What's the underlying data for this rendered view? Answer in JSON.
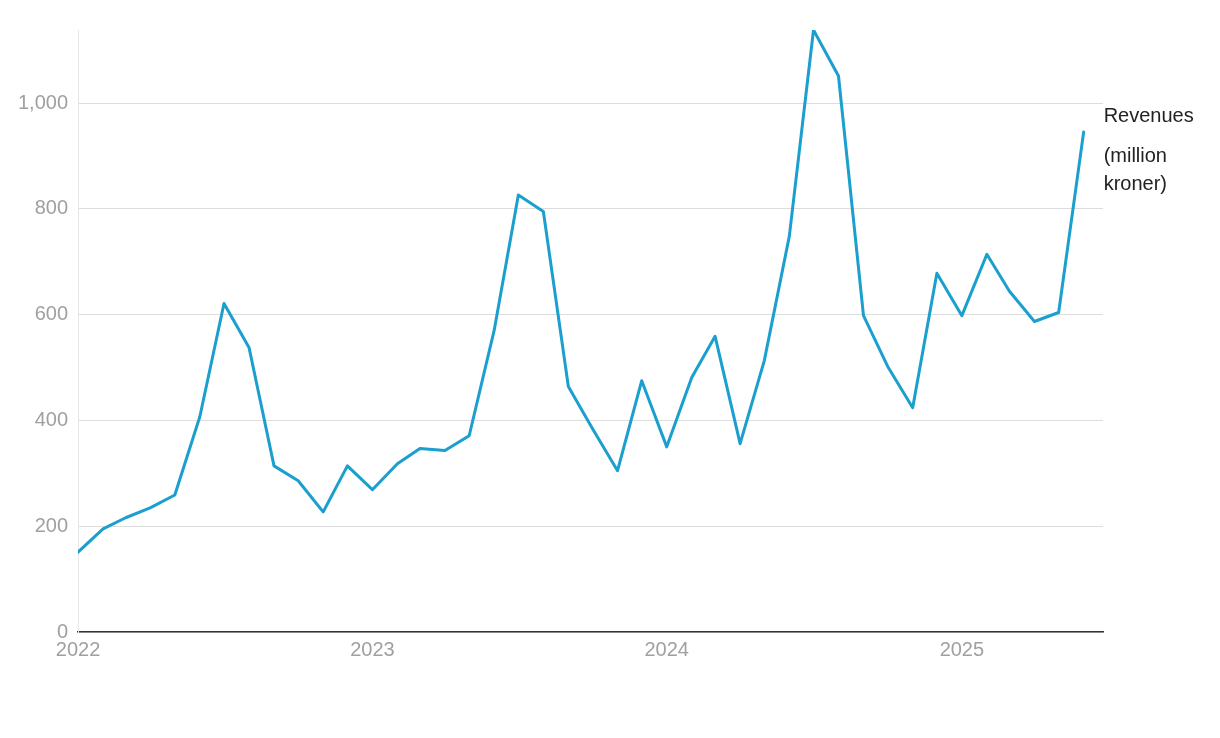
{
  "chart_data": {
    "type": "line",
    "x": [
      "2022-01",
      "2022-02",
      "2022-03",
      "2022-04",
      "2022-05",
      "2022-06",
      "2022-07",
      "2022-08",
      "2022-09",
      "2022-10",
      "2022-11",
      "2022-12",
      "2023-01",
      "2023-02",
      "2023-03",
      "2023-04",
      "2023-05",
      "2023-06",
      "2023-07",
      "2023-08",
      "2023-09",
      "2023-10",
      "2023-11",
      "2023-12",
      "2024-01",
      "2024-02",
      "2024-03",
      "2024-04",
      "2024-05",
      "2024-06",
      "2024-07",
      "2024-08",
      "2024-09",
      "2024-10",
      "2024-11",
      "2024-12",
      "2025-01",
      "2025-02",
      "2025-03",
      "2025-04",
      "2025-05",
      "2025-06"
    ],
    "series": [
      {
        "name": "Revenues (million kroner)",
        "color": "#1a9fce",
        "values": [
          151,
          195,
          216,
          235,
          259,
          407,
          621,
          538,
          314,
          286,
          227,
          314,
          269,
          318,
          347,
          343,
          371,
          570,
          826,
          795,
          464,
          384,
          305,
          475,
          350,
          481,
          559,
          356,
          513,
          748,
          1138,
          1051,
          598,
          502,
          424,
          678,
          598,
          714,
          644,
          587,
          604,
          945
        ]
      }
    ],
    "xlim": [
      "2022-01-01",
      "2025-06-25"
    ],
    "xticks": [
      {
        "value": "2022-01-01",
        "label": "2022"
      },
      {
        "value": "2023-01-01",
        "label": "2023"
      },
      {
        "value": "2024-01-01",
        "label": "2024"
      },
      {
        "value": "2025-01-01",
        "label": "2025"
      }
    ],
    "ylim": [
      0,
      1138
    ],
    "yticks": [
      0,
      200,
      400,
      600,
      800,
      {
        "value": 1000,
        "label": "1,000"
      }
    ],
    "grid": "y",
    "legend": false,
    "marker": "none",
    "line_style": "solid"
  }
}
